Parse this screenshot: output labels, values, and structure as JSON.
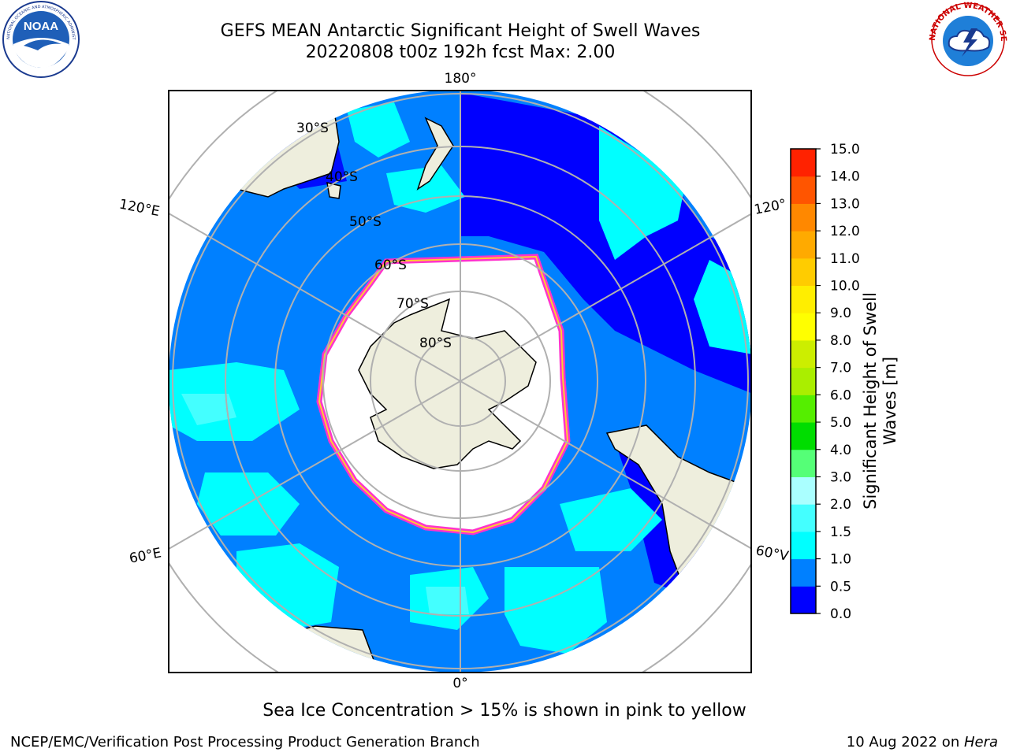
{
  "header": {
    "title_line1": "GEFS MEAN Antarctic Significant Height of Swell Waves",
    "title_line2": "20220808 t00z 192h fcst   Max: 2.00"
  },
  "map": {
    "projection": "south-polar-stereographic",
    "latitude_labels": [
      "30°S",
      "40°S",
      "50°S",
      "60°S",
      "70°S",
      "80°S"
    ],
    "longitude_labels": {
      "top": "180°",
      "bottom": "0°",
      "upper_left": "120°E",
      "upper_right": "120°",
      "lower_left": "60°E",
      "lower_right": "60°V"
    },
    "colors": {
      "land": "#eeeedd",
      "ice": "#ffffff",
      "ice_edge": [
        "#ff33cc",
        "#ff99aa",
        "#ffcc33"
      ],
      "swell_0_0p5": "#0000ff",
      "swell_0p5_1": "#0080ff",
      "swell_1_1p5": "#00ffff",
      "swell_1p5_2": "#44ffff",
      "swell_2_3": "#99ffff"
    }
  },
  "colorbar": {
    "label_line1": "Significant Height of Swell",
    "label_line2": "Waves [m]",
    "ticks": [
      "0.0",
      "0.5",
      "1.0",
      "1.5",
      "2.0",
      "3.0",
      "4.0",
      "5.0",
      "6.0",
      "7.0",
      "8.0",
      "9.0",
      "10.0",
      "11.0",
      "12.0",
      "13.0",
      "14.0",
      "15.0"
    ],
    "colors": [
      "#0000ff",
      "#0080ff",
      "#00ffff",
      "#44ffff",
      "#aaffff",
      "#55ff77",
      "#00dd00",
      "#55ee00",
      "#aaee00",
      "#ccee00",
      "#ffff00",
      "#ffee00",
      "#ffcc00",
      "#ffaa00",
      "#ff8800",
      "#ff5500",
      "#ff2200"
    ]
  },
  "caption": "Sea Ice Concentration > 15% is shown in pink to yellow",
  "footer": {
    "left": "NCEP/EMC/Verification Post Processing Product Generation Branch",
    "right_prefix": "10 Aug 2022 on ",
    "right_host": "Hera"
  },
  "logos": {
    "noaa_text": "NOAA",
    "noaa_ring_text": "NATIONAL OCEANIC AND ATMOSPHERIC ADMINISTRATION · U.S. DEPARTMENT OF COMMERCE",
    "nws_ring_text": "NATIONAL WEATHER SERVICE"
  }
}
